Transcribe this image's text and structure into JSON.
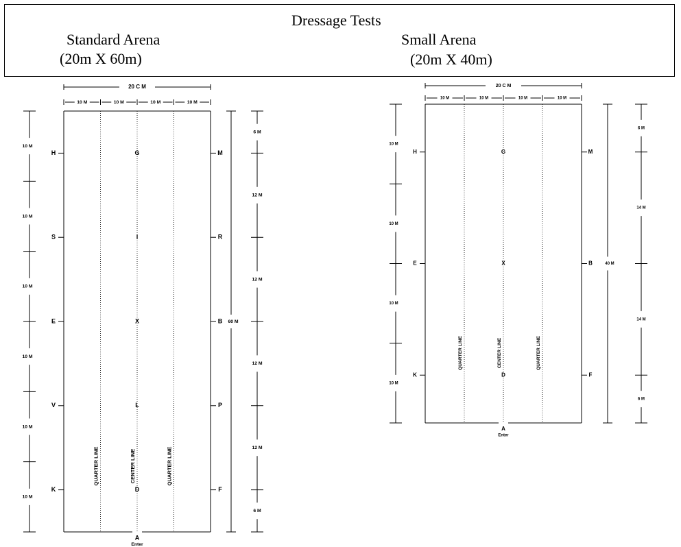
{
  "header": {
    "title": "Dressage Tests",
    "standard_name": "Standard Arena",
    "standard_dims": "(20m X 60m)",
    "small_name": "Small Arena",
    "small_dims": "(20m X 40m)"
  },
  "standard_arena": {
    "top_width_label": "20 C M",
    "segment_label": "10 M",
    "left_segments": [
      "10 M",
      "10 M",
      "10 M",
      "10 M",
      "10 M",
      "10 M"
    ],
    "right_segments": [
      "6 M",
      "12 M",
      "12 M",
      "12 M",
      "12 M",
      "6 M"
    ],
    "total_length_label": "60 M",
    "left_letters": [
      "H",
      "S",
      "E",
      "V",
      "K"
    ],
    "center_letters": [
      "G",
      "I",
      "X",
      "L",
      "D"
    ],
    "right_letters": [
      "M",
      "R",
      "B",
      "P",
      "F"
    ],
    "quarter_line_label": "QUARTER LINE",
    "center_line_label": "CENTER LINE",
    "entry_letter": "A",
    "entry_label": "Enter"
  },
  "small_arena": {
    "top_width_label": "20 C M",
    "segment_label": "10 M",
    "left_segments": [
      "10 M",
      "10 M",
      "10 M",
      "10 M"
    ],
    "right_segments": [
      "6 M",
      "14 M",
      "14 M",
      "6 M"
    ],
    "total_length_label": "40 M",
    "left_letters": [
      "H",
      "E",
      "K"
    ],
    "center_letters": [
      "G",
      "X",
      "D"
    ],
    "right_letters": [
      "M",
      "B",
      "F"
    ],
    "quarter_line_label": "QUARTER LINE",
    "center_line_label": "CENTER LINE",
    "entry_letter": "A",
    "entry_label": "Enter"
  }
}
